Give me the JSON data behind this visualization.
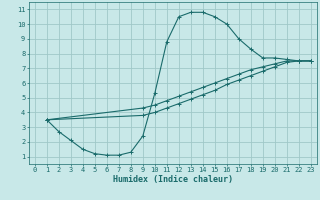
{
  "xlabel": "Humidex (Indice chaleur)",
  "bg_color": "#c8e8e8",
  "grid_color": "#a0c8c8",
  "line_color": "#1a6b6b",
  "xlim": [
    -0.5,
    23.5
  ],
  "ylim": [
    0.5,
    11.5
  ],
  "xticks": [
    0,
    1,
    2,
    3,
    4,
    5,
    6,
    7,
    8,
    9,
    10,
    11,
    12,
    13,
    14,
    15,
    16,
    17,
    18,
    19,
    20,
    21,
    22,
    23
  ],
  "yticks": [
    1,
    2,
    3,
    4,
    5,
    6,
    7,
    8,
    9,
    10,
    11
  ],
  "curve1_x": [
    1,
    2,
    3,
    4,
    5,
    6,
    7,
    8,
    9,
    10,
    11,
    12,
    13,
    14,
    15,
    16,
    17,
    18,
    19,
    20,
    21,
    22,
    23
  ],
  "curve1_y": [
    3.5,
    2.7,
    2.1,
    1.5,
    1.2,
    1.1,
    1.1,
    1.3,
    2.4,
    5.3,
    8.8,
    10.5,
    10.8,
    10.8,
    10.5,
    10.0,
    9.0,
    8.3,
    7.7,
    7.7,
    7.6,
    7.5,
    7.5
  ],
  "curve2_x": [
    1,
    9,
    10,
    11,
    12,
    13,
    14,
    15,
    16,
    17,
    18,
    19,
    20,
    21,
    22,
    23
  ],
  "curve2_y": [
    3.5,
    4.3,
    4.5,
    4.8,
    5.1,
    5.4,
    5.7,
    6.0,
    6.3,
    6.6,
    6.9,
    7.1,
    7.3,
    7.5,
    7.5,
    7.5
  ],
  "curve3_x": [
    1,
    9,
    10,
    11,
    12,
    13,
    14,
    15,
    16,
    17,
    18,
    19,
    20,
    21,
    22,
    23
  ],
  "curve3_y": [
    3.5,
    3.8,
    4.0,
    4.3,
    4.6,
    4.9,
    5.2,
    5.5,
    5.9,
    6.2,
    6.5,
    6.8,
    7.1,
    7.4,
    7.5,
    7.5
  ],
  "font_size_tick": 5.0,
  "font_size_label": 6.0
}
